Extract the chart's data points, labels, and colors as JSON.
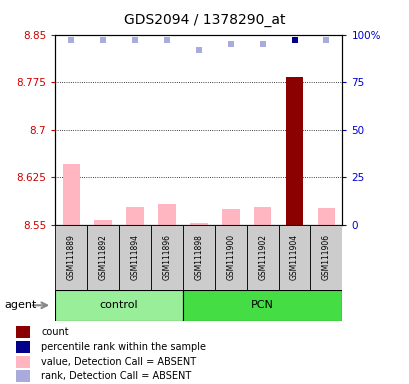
{
  "title": "GDS2094 / 1378290_at",
  "samples": [
    "GSM111889",
    "GSM111892",
    "GSM111894",
    "GSM111896",
    "GSM111898",
    "GSM111900",
    "GSM111902",
    "GSM111904",
    "GSM111906"
  ],
  "groups": [
    "control",
    "control",
    "control",
    "control",
    "PCN",
    "PCN",
    "PCN",
    "PCN",
    "PCN"
  ],
  "ylim_left": [
    8.55,
    8.85
  ],
  "ylim_right": [
    0,
    100
  ],
  "yticks_left": [
    8.55,
    8.625,
    8.7,
    8.775,
    8.85
  ],
  "yticks_right": [
    0,
    25,
    50,
    75,
    100
  ],
  "ytick_labels_left": [
    "8.55",
    "8.625",
    "8.7",
    "8.775",
    "8.85"
  ],
  "ytick_labels_right": [
    "0",
    "25",
    "50",
    "75",
    "100%"
  ],
  "bar_values": [
    8.645,
    8.558,
    8.578,
    8.583,
    8.553,
    8.575,
    8.578,
    8.783,
    8.577
  ],
  "bar_is_dark_red": [
    false,
    false,
    false,
    false,
    false,
    false,
    false,
    true,
    false
  ],
  "rank_pct": [
    97,
    97,
    97,
    97,
    92,
    95,
    95,
    97,
    97
  ],
  "rank_is_dark_blue": [
    false,
    false,
    false,
    false,
    false,
    false,
    false,
    true,
    false
  ],
  "baseline": 8.55,
  "bar_width": 0.55,
  "pink_bar_color": "#ffb6c1",
  "dark_red_color": "#8b0000",
  "light_blue_color": "#aaaadd",
  "dark_blue_color": "#00008b",
  "left_axis_color": "#cc0000",
  "right_axis_color": "#0000cc",
  "sample_box_color": "#cccccc",
  "control_group_color": "#99ee99",
  "pcn_group_color": "#44dd44",
  "legend_items": [
    {
      "color": "#8b0000",
      "label": "count"
    },
    {
      "color": "#00008b",
      "label": "percentile rank within the sample"
    },
    {
      "color": "#ffb6c1",
      "label": "value, Detection Call = ABSENT"
    },
    {
      "color": "#aaaadd",
      "label": "rank, Detection Call = ABSENT"
    }
  ]
}
